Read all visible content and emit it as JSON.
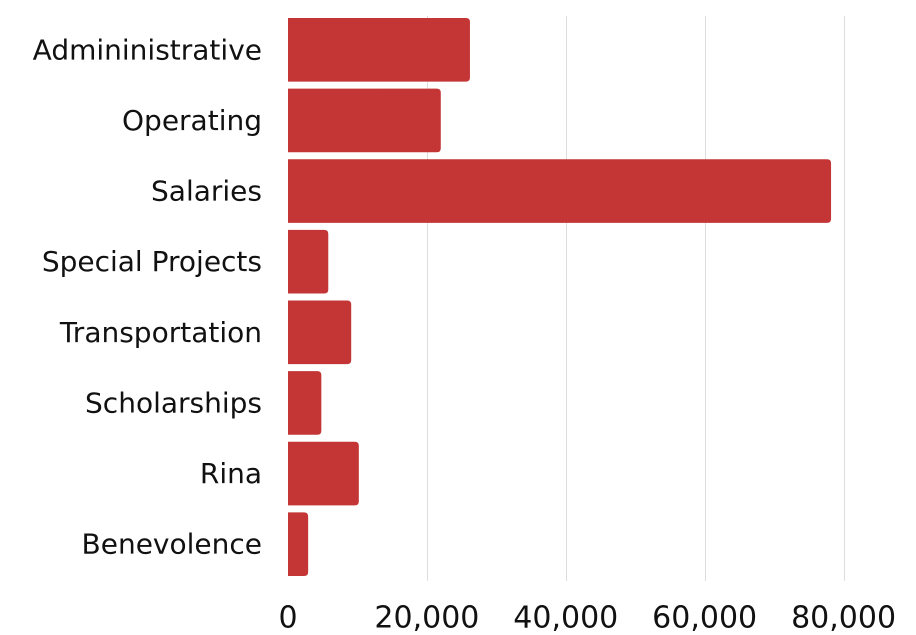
{
  "chart_data": {
    "type": "bar",
    "orientation": "horizontal",
    "title": "",
    "xlabel": "",
    "ylabel": "",
    "categories": [
      "Admininistrative",
      "Operating",
      "Salaries",
      "Special Projects",
      "Transportation",
      "Scholarships",
      "Rina",
      "Benevolence"
    ],
    "values": [
      26200,
      22000,
      78200,
      5800,
      9100,
      4800,
      10200,
      2900
    ],
    "xlim": [
      0,
      90000
    ],
    "x_ticks": [
      0,
      20000,
      40000,
      60000,
      80000
    ],
    "x_tick_labels": [
      "0",
      "20,000",
      "40,000",
      "60,000",
      "80,000"
    ],
    "grid": true,
    "legend": "none",
    "bar_color": "#c43535",
    "grid_color": "#dddddd"
  }
}
